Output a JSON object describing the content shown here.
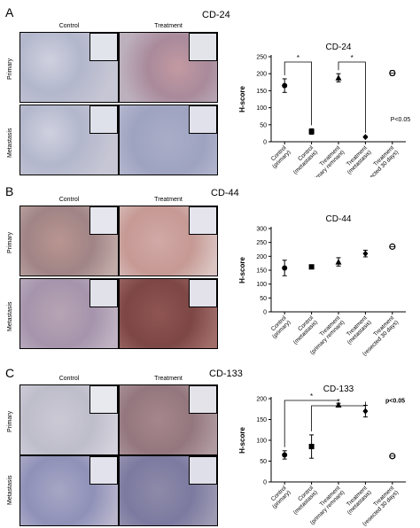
{
  "images": {
    "col_labels": [
      "Control",
      "Treatment"
    ],
    "row_labels": [
      "Primary",
      "Metastasis"
    ]
  },
  "panels": [
    {
      "letter": "A",
      "marker": "CD-24"
    },
    {
      "letter": "B",
      "marker": "CD-44"
    },
    {
      "letter": "C",
      "marker": "CD-133"
    }
  ],
  "chart_data": [
    {
      "type": "scatter",
      "title": "CD-24",
      "ylabel": "H-score",
      "categories": [
        "Control (primary)",
        "Control (metastasis)",
        "Treatment (primary remnant)",
        "Treatment (metastasis)",
        "Treatment (resected 30 days)"
      ],
      "values": [
        165,
        30,
        188,
        14,
        202
      ],
      "errors": [
        20,
        8,
        12,
        2,
        7
      ],
      "markers": [
        "circle",
        "square",
        "triangle-up",
        "diamond",
        "circle"
      ],
      "ylim": [
        0,
        250
      ],
      "yticks": [
        0,
        50,
        100,
        150,
        200,
        250
      ],
      "significance": [
        {
          "from": 0,
          "to": 1,
          "label": "*"
        },
        {
          "from": 2,
          "to": 3,
          "label": "*"
        }
      ],
      "annotation": "P<0.05"
    },
    {
      "type": "scatter",
      "title": "CD-44",
      "ylabel": "H-score",
      "categories": [
        "Control (primary)",
        "Control (metastasis)",
        "Treatment (primary remnant)",
        "Treatment (metastasis)",
        "Treatment (resected 30 days)"
      ],
      "values": [
        158,
        162,
        180,
        210,
        235
      ],
      "errors": [
        28,
        4,
        15,
        12,
        4
      ],
      "markers": [
        "circle",
        "square",
        "triangle-up",
        "diamond",
        "circle"
      ],
      "ylim": [
        0,
        300
      ],
      "yticks": [
        0,
        50,
        100,
        150,
        200,
        250,
        300
      ],
      "significance": [],
      "annotation": ""
    },
    {
      "type": "scatter",
      "title": "CD-133",
      "ylabel": "H-score",
      "categories": [
        "Control (primary)",
        "Control (metastasis)",
        "Treatment (primary remnant)",
        "Treatment (metastasis)",
        "Treatment (resected 30 days)"
      ],
      "values": [
        65,
        85,
        185,
        170,
        62
      ],
      "errors": [
        10,
        28,
        4,
        14,
        2
      ],
      "markers": [
        "circle",
        "square",
        "triangle-up",
        "diamond",
        "circle"
      ],
      "ylim": [
        0,
        200
      ],
      "yticks": [
        0,
        50,
        100,
        150,
        200
      ],
      "significance": [
        {
          "from": 0,
          "to": 2,
          "label": "*"
        },
        {
          "from": 1,
          "to": 3,
          "label": "*"
        }
      ],
      "annotation": "p<0.05"
    }
  ]
}
